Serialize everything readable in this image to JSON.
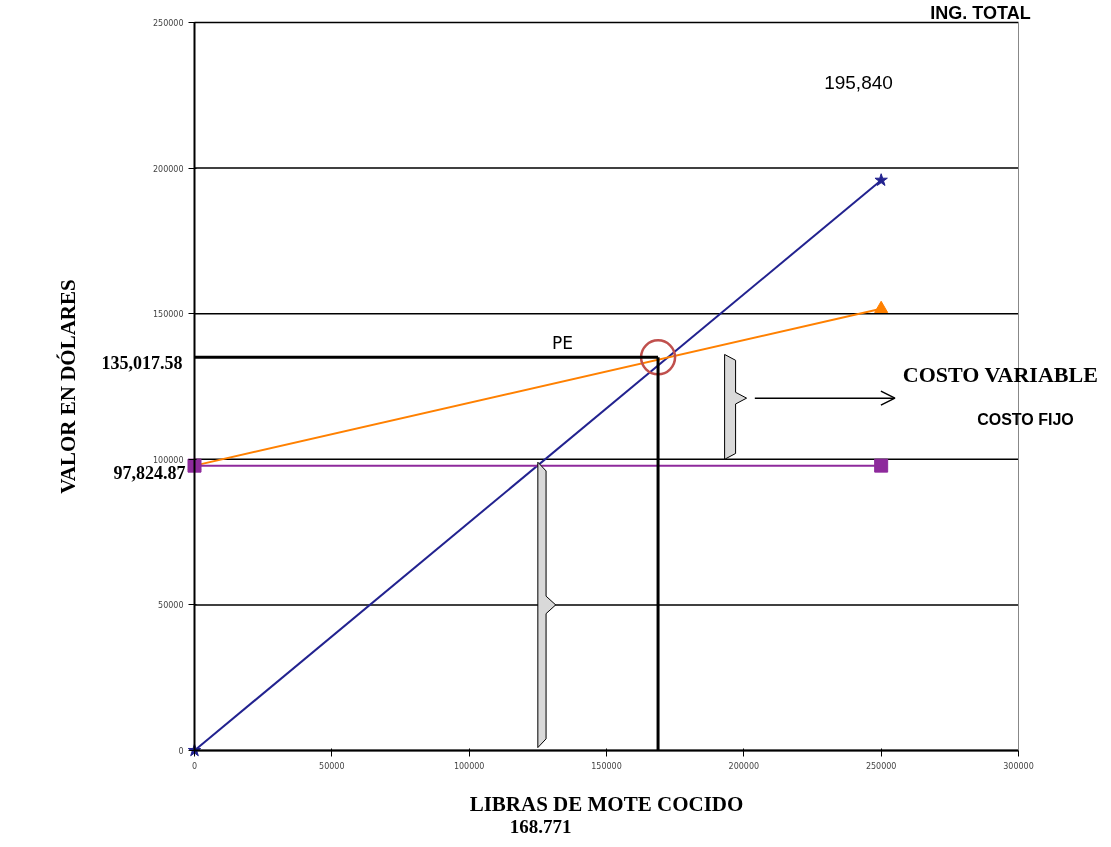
{
  "chart_data": {
    "type": "line",
    "xlabel": "LIBRAS DE MOTE COCIDO",
    "ylabel": "VALOR EN DÓLARES",
    "x": [
      0,
      250000
    ],
    "series": [
      {
        "color": "#22228f",
        "values": [
          0,
          195840
        ],
        "marker": "star"
      },
      {
        "color": "#ff8000",
        "values": [
          97824.87,
          151700
        ],
        "marker": "triangle"
      },
      {
        "color": "#8e2a9c",
        "values": [
          97824.87,
          97824.87
        ],
        "marker": "square"
      },
      {
        "type": "scatter",
        "color": "#c0504d",
        "x": [
          168771
        ],
        "values": [
          135017.58
        ],
        "marker": "circle"
      }
    ],
    "ref_lines": [
      {
        "axis": "y",
        "value": 135017.58,
        "label": "135,017.58",
        "color": "#000000"
      },
      {
        "axis": "x",
        "value": 168771,
        "color": "#000000"
      }
    ],
    "xlim": [
      0,
      300000
    ],
    "ylim": [
      0,
      250000
    ],
    "xticks": [
      0,
      50000,
      100000,
      150000,
      200000,
      250000,
      300000
    ],
    "yticks": [
      0,
      50000,
      100000,
      150000,
      200000,
      250000
    ],
    "grid": "y",
    "annotations": [
      "PE",
      "97,824.87",
      "195,840",
      "COSTO VARIABLE",
      "COSTO FIJO",
      "168.771",
      "ING. TOTAL"
    ]
  }
}
